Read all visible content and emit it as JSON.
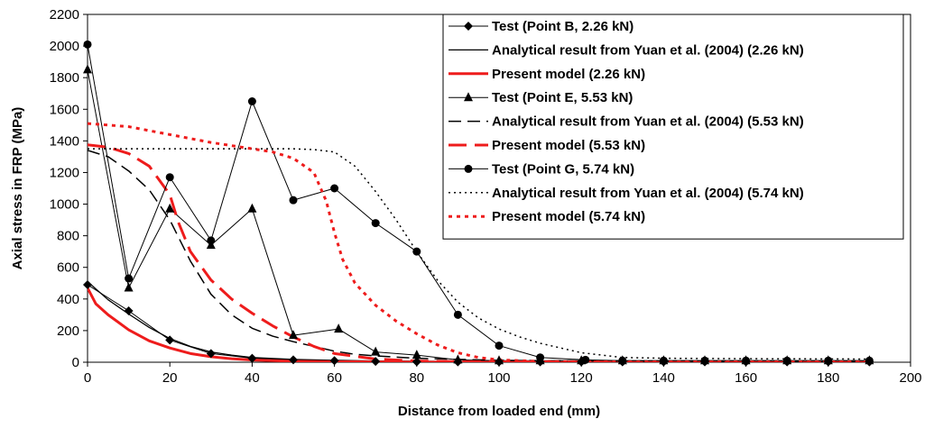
{
  "chart_data": {
    "type": "line",
    "xlabel": "Distance from loaded end (mm)",
    "ylabel": "Axial stress in FRP (MPa)",
    "xlim": [
      0,
      200
    ],
    "ylim": [
      0,
      2200
    ],
    "xticks": [
      "0",
      "20",
      "40",
      "60",
      "80",
      "100",
      "120",
      "140",
      "160",
      "180",
      "200"
    ],
    "yticks": [
      "0",
      "200",
      "400",
      "600",
      "800",
      "1000",
      "1200",
      "1400",
      "1600",
      "1800",
      "2000",
      "2200"
    ],
    "grid": false,
    "legend_position": "top-right",
    "series": [
      {
        "name": "Test (Point B, 2.26 kN)",
        "style": "marker-line",
        "marker": "diamond",
        "color": "#000000",
        "x": [
          0,
          10,
          20,
          30,
          40,
          50,
          60,
          70,
          80,
          90,
          100,
          110,
          120,
          130,
          140,
          150,
          160,
          170,
          180,
          190
        ],
        "y": [
          490,
          325,
          140,
          55,
          25,
          15,
          10,
          5,
          3,
          2,
          2,
          2,
          2,
          2,
          2,
          2,
          2,
          2,
          2,
          2
        ]
      },
      {
        "name": "Analytical result from Yuan et al. (2004) (2.26 kN)",
        "style": "solid-thin",
        "color": "#000000",
        "x": [
          0,
          5,
          10,
          15,
          20,
          25,
          30,
          35,
          40,
          50,
          60,
          70,
          80,
          100,
          120,
          140,
          160,
          190
        ],
        "y": [
          510,
          395,
          305,
          220,
          150,
          100,
          65,
          45,
          30,
          18,
          12,
          8,
          6,
          4,
          3,
          3,
          3,
          3
        ]
      },
      {
        "name": "Present model (2.26 kN)",
        "style": "solid-thick",
        "color": "#ee1c1c",
        "x": [
          0,
          2,
          5,
          10,
          15,
          20,
          25,
          30,
          35,
          40,
          50,
          60,
          70,
          80,
          100,
          120,
          140,
          160,
          190
        ],
        "y": [
          470,
          370,
          300,
          205,
          135,
          90,
          55,
          35,
          22,
          14,
          6,
          3,
          2,
          1,
          1,
          1,
          1,
          1,
          1
        ]
      },
      {
        "name": "Test (Point E, 5.53 kN)",
        "style": "marker-line",
        "marker": "triangle",
        "color": "#000000",
        "x": [
          0,
          10,
          20,
          30,
          40,
          50,
          61,
          70,
          80,
          90,
          100,
          110,
          120,
          130,
          140,
          150,
          160,
          170,
          180,
          190
        ],
        "y": [
          1850,
          470,
          970,
          740,
          970,
          170,
          210,
          65,
          45,
          15,
          10,
          10,
          10,
          10,
          10,
          10,
          10,
          10,
          10,
          10
        ]
      },
      {
        "name": "Analytical result from Yuan et al. (2004) (5.53 kN)",
        "style": "dashed-long",
        "color": "#000000",
        "x": [
          0,
          5,
          10,
          15,
          20,
          25,
          30,
          35,
          40,
          45,
          50,
          55,
          60,
          65,
          70,
          80,
          90,
          100,
          120,
          140,
          160,
          190
        ],
        "y": [
          1340,
          1300,
          1210,
          1090,
          900,
          640,
          430,
          300,
          215,
          165,
          130,
          100,
          70,
          50,
          40,
          25,
          18,
          12,
          8,
          6,
          5,
          5
        ]
      },
      {
        "name": "Present model (5.53 kN)",
        "style": "dashed-long-thick",
        "color": "#ee1c1c",
        "x": [
          0,
          5,
          10,
          15,
          20,
          22,
          25,
          30,
          35,
          40,
          45,
          50,
          55,
          60,
          70,
          80,
          90,
          100,
          120,
          140,
          160,
          190
        ],
        "y": [
          1375,
          1360,
          1320,
          1240,
          1060,
          890,
          700,
          520,
          400,
          310,
          230,
          160,
          100,
          55,
          20,
          8,
          4,
          3,
          2,
          2,
          2,
          2
        ]
      },
      {
        "name": "Test (Point G, 5.74 kN)",
        "style": "marker-line",
        "marker": "circle",
        "color": "#000000",
        "x": [
          0,
          10,
          20,
          30,
          40,
          50,
          60,
          70,
          80,
          90,
          100,
          110,
          121,
          130,
          140,
          150,
          160,
          170,
          180,
          190
        ],
        "y": [
          2010,
          530,
          1170,
          770,
          1650,
          1025,
          1100,
          880,
          700,
          300,
          105,
          30,
          15,
          10,
          10,
          10,
          10,
          10,
          10,
          10
        ]
      },
      {
        "name": "Analytical result from Yuan et al. (2004) (5.74 kN)",
        "style": "dotted",
        "color": "#000000",
        "x": [
          0,
          10,
          20,
          30,
          40,
          50,
          55,
          60,
          65,
          70,
          75,
          80,
          85,
          90,
          95,
          100,
          105,
          110,
          120,
          130,
          140,
          160,
          190
        ],
        "y": [
          1350,
          1350,
          1350,
          1350,
          1350,
          1350,
          1345,
          1330,
          1240,
          1080,
          900,
          700,
          520,
          380,
          280,
          210,
          160,
          120,
          60,
          30,
          25,
          22,
          20
        ]
      },
      {
        "name": "Present model (5.74 kN)",
        "style": "dotted-thick",
        "color": "#ee1c1c",
        "x": [
          0,
          10,
          20,
          30,
          40,
          45,
          50,
          55,
          58,
          60,
          62,
          65,
          70,
          75,
          80,
          85,
          90,
          95,
          100,
          110,
          120,
          140,
          160,
          190
        ],
        "y": [
          1510,
          1490,
          1440,
          1390,
          1350,
          1330,
          1290,
          1200,
          1020,
          820,
          650,
          500,
          360,
          260,
          180,
          110,
          60,
          30,
          15,
          5,
          3,
          2,
          2,
          2
        ]
      }
    ]
  }
}
